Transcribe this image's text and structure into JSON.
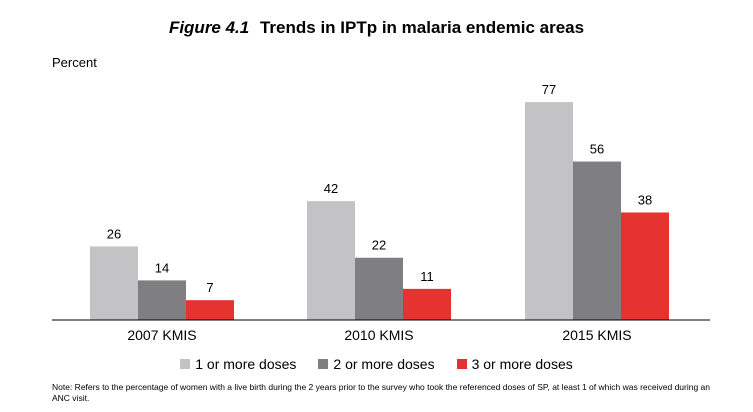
{
  "figure": {
    "number": "Figure 4.1",
    "title": "Trends in IPTp in malaria endemic areas"
  },
  "note": "Note: Refers to the percentage of women with a live birth during the 2 years prior to the survey who took the referenced doses of SP, at least 1 of which was received during an ANC visit.",
  "chart_data": {
    "type": "bar",
    "title": "Trends in IPTp in malaria endemic areas",
    "ylabel": "Percent",
    "xlabel": "",
    "ylim": [
      0,
      85
    ],
    "grid": false,
    "legend_position": "bottom",
    "categories": [
      "2007 KMIS",
      "2010 KMIS",
      "2015 KMIS"
    ],
    "series": [
      {
        "name": "1 or more doses",
        "color": "#c3c3c5",
        "values": [
          26,
          42,
          77
        ]
      },
      {
        "name": "2 or more doses",
        "color": "#7f7f81",
        "values": [
          14,
          22,
          56
        ]
      },
      {
        "name": "3 or more doses",
        "color": "#e6332f",
        "values": [
          7,
          11,
          38
        ]
      }
    ]
  }
}
